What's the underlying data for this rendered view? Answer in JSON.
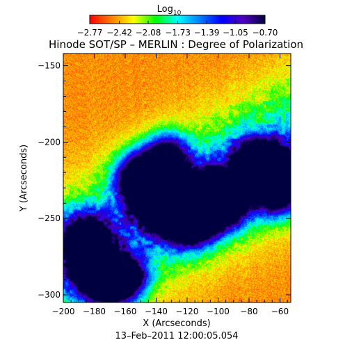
{
  "chart_data": {
    "type": "heatmap",
    "title": "Hinode SOT/SP – MERLIN : Degree of Polarization",
    "xlabel": "X (Arcseconds)",
    "ylabel": "Y (Arcseconds)",
    "xlim": [
      -200,
      -53
    ],
    "ylim": [
      -305,
      -142
    ],
    "x_ticks": [
      -200,
      -180,
      -160,
      -140,
      -120,
      -100,
      -80,
      -60
    ],
    "y_ticks": [
      -150,
      -200,
      -250,
      -300
    ],
    "x_tick_labels": [
      "−200",
      "−180",
      "−160",
      "−140",
      "−120",
      "−100",
      "−80",
      "−60"
    ],
    "y_tick_labels": [
      "−150",
      "−200",
      "−250",
      "−300"
    ],
    "colorbar": {
      "label": "Log",
      "label_sub": "10",
      "range": [
        -2.77,
        -0.7
      ],
      "tick_values": [
        -2.77,
        -2.42,
        -2.08,
        -1.73,
        -1.39,
        -1.05,
        -0.7
      ],
      "tick_labels": [
        "−2.77",
        "−2.42",
        "−2.08",
        "−1.73",
        "−1.39",
        "−1.05",
        "−0.70"
      ],
      "colors": [
        "#ff0000",
        "#ff8000",
        "#ffff00",
        "#00ff00",
        "#00ffff",
        "#0080ff",
        "#0000ff",
        "#5000c0",
        "#000040"
      ]
    },
    "magnetic_regions": [
      {
        "x": -186,
        "y": -263,
        "value": -0.7
      },
      {
        "x": -181,
        "y": -281,
        "value": -0.85
      },
      {
        "x": -172,
        "y": -293,
        "value": -1.05
      },
      {
        "x": -150,
        "y": -222,
        "value": -0.75
      },
      {
        "x": -143,
        "y": -232,
        "value": -0.9
      },
      {
        "x": -137,
        "y": -243,
        "value": -1.05
      },
      {
        "x": -125,
        "y": -238,
        "value": -0.78
      },
      {
        "x": -113,
        "y": -246,
        "value": -0.75
      },
      {
        "x": -120,
        "y": -252,
        "value": -0.85
      },
      {
        "x": -106,
        "y": -233,
        "value": -1.0
      },
      {
        "x": -95,
        "y": -240,
        "value": -0.92
      },
      {
        "x": -66,
        "y": -217,
        "value": -0.72
      },
      {
        "x": -62,
        "y": -232,
        "value": -0.85
      },
      {
        "x": -78,
        "y": -214,
        "value": -1.1
      },
      {
        "x": -160,
        "y": -288,
        "value": -1.2
      },
      {
        "x": -133,
        "y": -209,
        "value": -1.3
      }
    ],
    "grid": false
  },
  "date_label": "13–Feb–2011 12:00:05.054"
}
